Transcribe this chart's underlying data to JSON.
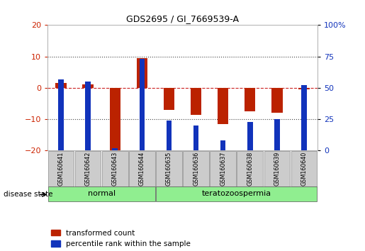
{
  "title": "GDS2695 / GI_7669539-A",
  "samples": [
    "GSM160641",
    "GSM160642",
    "GSM160643",
    "GSM160644",
    "GSM160635",
    "GSM160636",
    "GSM160637",
    "GSM160638",
    "GSM160639",
    "GSM160640"
  ],
  "transformed_count": [
    1.5,
    1.0,
    -20.5,
    9.5,
    -7.0,
    -8.5,
    -11.5,
    -7.5,
    -8.0,
    -0.5
  ],
  "percentile_rank": [
    57,
    55,
    2,
    73,
    24,
    20,
    8,
    23,
    25,
    52
  ],
  "ylim_left": [
    -20,
    20
  ],
  "yticks_left": [
    -20,
    -10,
    0,
    10,
    20
  ],
  "ylim_right": [
    0,
    100
  ],
  "yticks_right": [
    0,
    25,
    50,
    75,
    100
  ],
  "group_labels": [
    "normal",
    "teratozoospermia"
  ],
  "bar_color_red": "#bb2200",
  "bar_color_blue": "#1133bb",
  "zero_line_color": "#cc2222",
  "dotted_line_color": "#444444",
  "tick_label_color_left": "#cc2200",
  "tick_label_color_right": "#1133bb",
  "legend_red_label": "transformed count",
  "legend_blue_label": "percentile rank within the sample",
  "disease_state_label": "disease state",
  "bar_width": 0.4,
  "blue_bar_width": 0.2
}
